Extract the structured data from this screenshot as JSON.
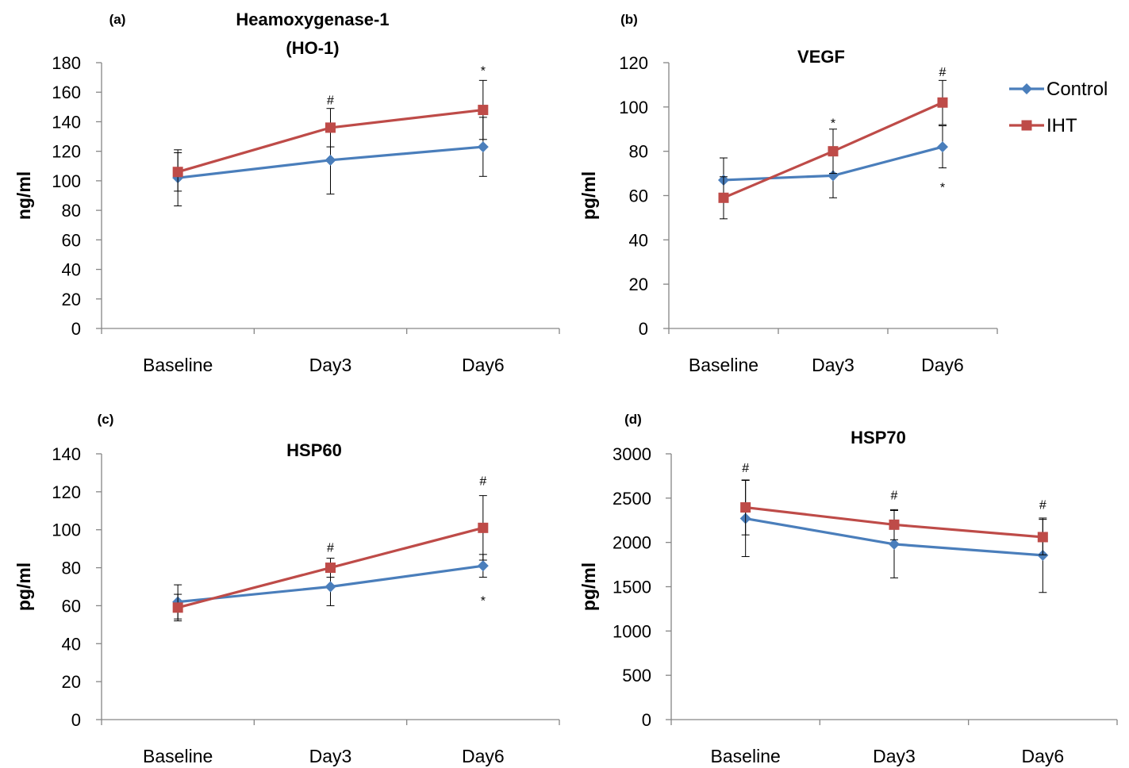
{
  "colors": {
    "Control": "#4a7ebb",
    "IHT": "#be4b48",
    "axis": "#868686"
  },
  "legend": [
    {
      "name": "Control",
      "marker": "diamond"
    },
    {
      "name": "IHT",
      "marker": "square"
    }
  ],
  "chart_data": [
    {
      "type": "line",
      "panel_label": "(a)",
      "title": "Heamoxygenase-1\n(HO-1)",
      "xlabel": "",
      "ylabel": "ng/ml",
      "categories": [
        "Baseline",
        "Day3",
        "Day6"
      ],
      "ylim": [
        0,
        180
      ],
      "yticks": [
        0,
        20,
        40,
        60,
        80,
        100,
        120,
        140,
        160,
        180
      ],
      "grid": false,
      "series": [
        {
          "name": "Control",
          "values": [
            102,
            114,
            123
          ],
          "error": [
            19,
            23,
            20
          ]
        },
        {
          "name": "IHT",
          "values": [
            106,
            136,
            148
          ],
          "error": [
            13,
            13,
            20
          ]
        }
      ],
      "annotations": [
        {
          "category": "Day3",
          "text": "#",
          "value": 155
        },
        {
          "category": "Day6",
          "text": "*",
          "value": 175
        }
      ]
    },
    {
      "type": "line",
      "panel_label": "(b)",
      "title": "VEGF",
      "xlabel": "",
      "ylabel": "pg/ml",
      "categories": [
        "Baseline",
        "Day3",
        "Day6"
      ],
      "ylim": [
        0,
        120
      ],
      "yticks": [
        0,
        20,
        40,
        60,
        80,
        100,
        120
      ],
      "grid": false,
      "series": [
        {
          "name": "Control",
          "values": [
            67,
            69,
            82
          ],
          "error": [
            10,
            10,
            9.5
          ]
        },
        {
          "name": "IHT",
          "values": [
            59,
            80,
            102
          ],
          "error": [
            9.5,
            10,
            10
          ]
        }
      ],
      "annotations": [
        {
          "category": "Day3",
          "text": "*",
          "value": 93
        },
        {
          "category": "Day6",
          "text": "#",
          "value": 116
        },
        {
          "category": "Day6",
          "text": "*",
          "value": 64
        }
      ]
    },
    {
      "type": "line",
      "panel_label": "(c)",
      "title": "HSP60",
      "xlabel": "",
      "ylabel": "pg/ml",
      "categories": [
        "Baseline",
        "Day3",
        "Day6"
      ],
      "ylim": [
        0,
        140
      ],
      "yticks": [
        0,
        20,
        40,
        60,
        80,
        100,
        120,
        140
      ],
      "grid": false,
      "series": [
        {
          "name": "Control",
          "values": [
            62,
            70,
            81
          ],
          "error": [
            9,
            10,
            6
          ]
        },
        {
          "name": "IHT",
          "values": [
            59,
            80,
            101
          ],
          "error": [
            7,
            5,
            17
          ]
        }
      ],
      "annotations": [
        {
          "category": "Day3",
          "text": "#",
          "value": 91
        },
        {
          "category": "Day6",
          "text": "#",
          "value": 126
        },
        {
          "category": "Day6",
          "text": "*",
          "value": 63
        }
      ]
    },
    {
      "type": "line",
      "panel_label": "(d)",
      "title": "HSP70",
      "xlabel": "",
      "ylabel": "pg/ml",
      "categories": [
        "Baseline",
        "Day3",
        "Day6"
      ],
      "ylim": [
        0,
        3000
      ],
      "yticks": [
        0,
        500,
        1000,
        1500,
        2000,
        2500,
        3000
      ],
      "grid": false,
      "series": [
        {
          "name": "Control",
          "values": [
            2270,
            1980,
            1855
          ],
          "error": [
            430,
            380,
            420
          ]
        },
        {
          "name": "IHT",
          "values": [
            2395,
            2200,
            2060
          ],
          "error": [
            310,
            170,
            200
          ]
        }
      ],
      "annotations": [
        {
          "category": "Baseline",
          "text": "#",
          "value": 2850
        },
        {
          "category": "Day3",
          "text": "#",
          "value": 2540
        },
        {
          "category": "Day6",
          "text": "#",
          "value": 2430
        }
      ]
    }
  ]
}
